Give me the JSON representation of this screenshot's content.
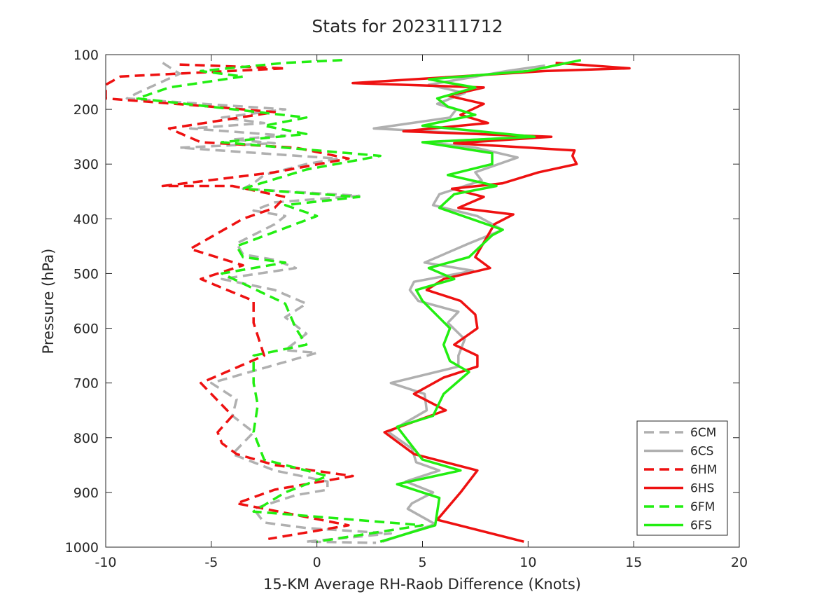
{
  "chart_data": {
    "type": "line",
    "title": "Stats for 2023111712",
    "xlabel": "15-KM Average RH-Raob Difference (Knots)",
    "ylabel": "Pressure (hPa)",
    "xlim": [
      -10,
      20
    ],
    "ylim": [
      100,
      1000
    ],
    "y_reversed": true,
    "x_ticks": [
      "-10",
      "-5",
      "0",
      "5",
      "10",
      "15",
      "20"
    ],
    "y_ticks": [
      "100",
      "200",
      "300",
      "400",
      "500",
      "600",
      "700",
      "800",
      "900",
      "1000"
    ],
    "grid": false,
    "legend_position": "bottom-right",
    "series": [
      {
        "name": "6CM",
        "color": "#b0b0b0",
        "style": "dashed",
        "points": [
          [
            -7.3,
            115
          ],
          [
            -6.5,
            135
          ],
          [
            -8.5,
            170
          ],
          [
            -9.0,
            180
          ],
          [
            -7.3,
            185
          ],
          [
            -1.5,
            200
          ],
          [
            -4.5,
            215
          ],
          [
            -2.5,
            225
          ],
          [
            -6.0,
            235
          ],
          [
            -1.5,
            248
          ],
          [
            -4.0,
            255
          ],
          [
            -2.0,
            262
          ],
          [
            -6.5,
            270
          ],
          [
            1.0,
            290
          ],
          [
            -0.5,
            300
          ],
          [
            -2.5,
            320
          ],
          [
            -3.0,
            335
          ],
          [
            -3.5,
            345
          ],
          [
            2.0,
            358
          ],
          [
            -2.0,
            370
          ],
          [
            -3.0,
            385
          ],
          [
            -1.5,
            395
          ],
          [
            -2.0,
            410
          ],
          [
            -3.8,
            445
          ],
          [
            -3.5,
            465
          ],
          [
            -2.0,
            475
          ],
          [
            -1.0,
            490
          ],
          [
            -4.5,
            510
          ],
          [
            -2.0,
            530
          ],
          [
            -0.5,
            555
          ],
          [
            -1.5,
            580
          ],
          [
            -0.5,
            610
          ],
          [
            -1.5,
            640
          ],
          [
            0,
            645
          ],
          [
            -5.0,
            700
          ],
          [
            -3.8,
            730
          ],
          [
            -4.0,
            760
          ],
          [
            -3.0,
            790
          ],
          [
            -4.0,
            830
          ],
          [
            -2.0,
            860
          ],
          [
            0.5,
            880
          ],
          [
            0.5,
            895
          ],
          [
            -1.0,
            905
          ],
          [
            -3.0,
            930
          ],
          [
            -2.5,
            955
          ],
          [
            -0.5,
            965
          ],
          [
            3.5,
            975
          ],
          [
            -0.5,
            990
          ],
          [
            2.8,
            992
          ]
        ]
      },
      {
        "name": "6CS",
        "color": "#b0b0b0",
        "style": "solid",
        "points": [
          [
            10.8,
            120
          ],
          [
            9.0,
            130
          ],
          [
            5.3,
            155
          ],
          [
            7.0,
            170
          ],
          [
            5.7,
            190
          ],
          [
            6.6,
            200
          ],
          [
            6.3,
            215
          ],
          [
            2.7,
            235
          ],
          [
            10.2,
            250
          ],
          [
            5.2,
            260
          ],
          [
            7.5,
            270
          ],
          [
            9.5,
            288
          ],
          [
            7.5,
            315
          ],
          [
            7.8,
            330
          ],
          [
            5.8,
            355
          ],
          [
            5.5,
            375
          ],
          [
            7.6,
            395
          ],
          [
            8.8,
            420
          ],
          [
            7.2,
            445
          ],
          [
            5.1,
            480
          ],
          [
            7.4,
            495
          ],
          [
            4.6,
            515
          ],
          [
            4.4,
            530
          ],
          [
            4.8,
            550
          ],
          [
            6.7,
            570
          ],
          [
            6.2,
            590
          ],
          [
            7.0,
            620
          ],
          [
            6.7,
            650
          ],
          [
            6.7,
            670
          ],
          [
            3.5,
            700
          ],
          [
            5.1,
            720
          ],
          [
            5.2,
            750
          ],
          [
            3.4,
            790
          ],
          [
            4.5,
            820
          ],
          [
            4.7,
            845
          ],
          [
            5.8,
            860
          ],
          [
            4.2,
            880
          ],
          [
            5.5,
            900
          ],
          [
            4.5,
            920
          ],
          [
            4.3,
            930
          ],
          [
            5.6,
            958
          ],
          [
            3.1,
            990
          ]
        ]
      },
      {
        "name": "6HM",
        "color": "#ee1111",
        "style": "dashed",
        "points": [
          [
            -6.5,
            118
          ],
          [
            -1.5,
            125
          ],
          [
            -9.3,
            140
          ],
          [
            -10,
            155
          ],
          [
            -10,
            180
          ],
          [
            -5.0,
            195
          ],
          [
            -2.0,
            205
          ],
          [
            -7.0,
            235
          ],
          [
            -5.5,
            260
          ],
          [
            -1.0,
            270
          ],
          [
            1.5,
            290
          ],
          [
            -2.0,
            315
          ],
          [
            -7.3,
            340
          ],
          [
            -4.0,
            340
          ],
          [
            -1.5,
            360
          ],
          [
            -2.0,
            380
          ],
          [
            -3.5,
            400
          ],
          [
            -6.0,
            455
          ],
          [
            -3.5,
            485
          ],
          [
            -5.5,
            510
          ],
          [
            -3.0,
            550
          ],
          [
            -3.0,
            590
          ],
          [
            -2.5,
            650
          ],
          [
            -5.5,
            700
          ],
          [
            -4.0,
            760
          ],
          [
            -4.7,
            790
          ],
          [
            -4.5,
            810
          ],
          [
            -3.8,
            830
          ],
          [
            -2.0,
            850
          ],
          [
            1.7,
            870
          ],
          [
            -2.0,
            895
          ],
          [
            -3.8,
            920
          ],
          [
            1.5,
            960
          ],
          [
            -2.3,
            985
          ]
        ]
      },
      {
        "name": "6HS",
        "color": "#ee1111",
        "style": "solid",
        "points": [
          [
            11.3,
            115
          ],
          [
            14.8,
            125
          ],
          [
            10.8,
            130
          ],
          [
            1.7,
            152
          ],
          [
            7.9,
            160
          ],
          [
            6.2,
            175
          ],
          [
            7.9,
            190
          ],
          [
            6.8,
            210
          ],
          [
            8.1,
            225
          ],
          [
            4.1,
            240
          ],
          [
            11.1,
            250
          ],
          [
            6.5,
            262
          ],
          [
            12.2,
            275
          ],
          [
            12.1,
            285
          ],
          [
            12.3,
            300
          ],
          [
            10.5,
            315
          ],
          [
            8.8,
            335
          ],
          [
            6.4,
            345
          ],
          [
            7.9,
            360
          ],
          [
            6.7,
            380
          ],
          [
            9.3,
            392
          ],
          [
            8.4,
            410
          ],
          [
            7.8,
            450
          ],
          [
            7.5,
            470
          ],
          [
            8.2,
            490
          ],
          [
            6.0,
            510
          ],
          [
            5.2,
            530
          ],
          [
            6.8,
            550
          ],
          [
            7.5,
            575
          ],
          [
            7.6,
            600
          ],
          [
            6.5,
            630
          ],
          [
            7.6,
            650
          ],
          [
            7.6,
            670
          ],
          [
            6.0,
            690
          ],
          [
            4.6,
            720
          ],
          [
            6.1,
            750
          ],
          [
            3.2,
            790
          ],
          [
            4.6,
            830
          ],
          [
            7.6,
            860
          ],
          [
            6.8,
            900
          ],
          [
            5.7,
            950
          ],
          [
            9.8,
            990
          ]
        ]
      },
      {
        "name": "6FM",
        "color": "#22ee11",
        "style": "dashed",
        "points": [
          [
            1.2,
            110
          ],
          [
            -1.5,
            115
          ],
          [
            -5.5,
            130
          ],
          [
            -3.5,
            140
          ],
          [
            -7.0,
            160
          ],
          [
            -8.5,
            180
          ],
          [
            -0.5,
            215
          ],
          [
            -2.5,
            230
          ],
          [
            -0.5,
            245
          ],
          [
            -4.5,
            260
          ],
          [
            3.0,
            285
          ],
          [
            -0.5,
            310
          ],
          [
            -3.5,
            345
          ],
          [
            2.0,
            360
          ],
          [
            -1.5,
            375
          ],
          [
            0,
            395
          ],
          [
            -3.8,
            450
          ],
          [
            -3.5,
            470
          ],
          [
            -1.5,
            480
          ],
          [
            -4.5,
            500
          ],
          [
            -1.5,
            555
          ],
          [
            -1.0,
            600
          ],
          [
            -0.5,
            630
          ],
          [
            -3.0,
            650
          ],
          [
            -3.0,
            700
          ],
          [
            -2.8,
            740
          ],
          [
            -3.0,
            790
          ],
          [
            -2.5,
            840
          ],
          [
            0.5,
            870
          ],
          [
            -1.5,
            900
          ],
          [
            -3.0,
            935
          ],
          [
            5.0,
            960
          ],
          [
            0,
            990
          ]
        ]
      },
      {
        "name": "6FS",
        "color": "#22ee11",
        "style": "solid",
        "points": [
          [
            12.5,
            110
          ],
          [
            10.0,
            130
          ],
          [
            5.3,
            145
          ],
          [
            7.5,
            160
          ],
          [
            5.7,
            180
          ],
          [
            6.2,
            195
          ],
          [
            7.5,
            210
          ],
          [
            5.0,
            230
          ],
          [
            10.3,
            250
          ],
          [
            5.0,
            260
          ],
          [
            8.3,
            280
          ],
          [
            8.3,
            300
          ],
          [
            6.2,
            320
          ],
          [
            8.5,
            340
          ],
          [
            6.5,
            355
          ],
          [
            5.8,
            380
          ],
          [
            8.8,
            420
          ],
          [
            8.3,
            430
          ],
          [
            7.2,
            470
          ],
          [
            5.3,
            490
          ],
          [
            6.5,
            510
          ],
          [
            4.7,
            530
          ],
          [
            5.0,
            550
          ],
          [
            6.3,
            600
          ],
          [
            6.0,
            630
          ],
          [
            6.3,
            660
          ],
          [
            7.2,
            680
          ],
          [
            6.0,
            720
          ],
          [
            5.5,
            760
          ],
          [
            3.8,
            780
          ],
          [
            5.0,
            840
          ],
          [
            6.8,
            860
          ],
          [
            3.8,
            885
          ],
          [
            5.8,
            910
          ],
          [
            5.6,
            960
          ],
          [
            3.0,
            990
          ]
        ]
      }
    ]
  }
}
